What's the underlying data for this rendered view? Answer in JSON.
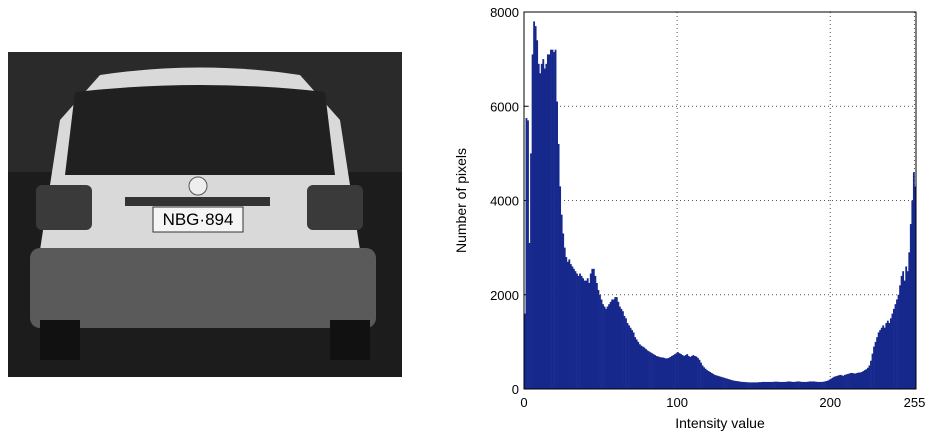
{
  "photo": {
    "plate": "NBG·894"
  },
  "chart_data": {
    "type": "histogram",
    "xlabel": "Intensity value",
    "ylabel": "Number of pixels",
    "color": "#16288c",
    "grid": true,
    "xlim": [
      0,
      256
    ],
    "ylim": [
      0,
      8000
    ],
    "xticks": [
      0,
      100,
      200,
      255
    ],
    "yticks": [
      0,
      2000,
      4000,
      6000,
      8000
    ],
    "bins": [
      0,
      1,
      2,
      3,
      4,
      5,
      6,
      7,
      8,
      9,
      10,
      11,
      12,
      13,
      14,
      15,
      16,
      17,
      18,
      19,
      20,
      21,
      22,
      23,
      24,
      25,
      26,
      27,
      28,
      29,
      30,
      31,
      32,
      33,
      34,
      35,
      36,
      37,
      38,
      39,
      40,
      41,
      42,
      43,
      44,
      45,
      46,
      47,
      48,
      49,
      50,
      51,
      52,
      53,
      54,
      55,
      56,
      57,
      58,
      59,
      60,
      61,
      62,
      63,
      64,
      65,
      66,
      67,
      68,
      69,
      70,
      71,
      72,
      73,
      74,
      75,
      76,
      77,
      78,
      79,
      80,
      81,
      82,
      83,
      84,
      85,
      86,
      87,
      88,
      89,
      90,
      91,
      92,
      93,
      94,
      95,
      96,
      97,
      98,
      99,
      100,
      101,
      102,
      103,
      104,
      105,
      106,
      107,
      108,
      109,
      110,
      111,
      112,
      113,
      114,
      115,
      116,
      117,
      118,
      119,
      120,
      121,
      122,
      123,
      124,
      125,
      126,
      127,
      128,
      129,
      130,
      131,
      132,
      133,
      134,
      135,
      136,
      137,
      138,
      139,
      140,
      141,
      142,
      143,
      144,
      145,
      146,
      147,
      148,
      149,
      150,
      151,
      152,
      153,
      154,
      155,
      156,
      157,
      158,
      159,
      160,
      161,
      162,
      163,
      164,
      165,
      166,
      167,
      168,
      169,
      170,
      171,
      172,
      173,
      174,
      175,
      176,
      177,
      178,
      179,
      180,
      181,
      182,
      183,
      184,
      185,
      186,
      187,
      188,
      189,
      190,
      191,
      192,
      193,
      194,
      195,
      196,
      197,
      198,
      199,
      200,
      201,
      202,
      203,
      204,
      205,
      206,
      207,
      208,
      209,
      210,
      211,
      212,
      213,
      214,
      215,
      216,
      217,
      218,
      219,
      220,
      221,
      222,
      223,
      224,
      225,
      226,
      227,
      228,
      229,
      230,
      231,
      232,
      233,
      234,
      235,
      236,
      237,
      238,
      239,
      240,
      241,
      242,
      243,
      244,
      245,
      246,
      247,
      248,
      249,
      250,
      251,
      252,
      253,
      254,
      255,
      256
    ],
    "values": [
      1600,
      5750,
      5700,
      3100,
      5000,
      7100,
      7800,
      7700,
      7400,
      6900,
      6700,
      6900,
      7000,
      6800,
      6900,
      7100,
      7100,
      7200,
      7200,
      7150,
      7200,
      6100,
      5200,
      4300,
      3700,
      3300,
      3000,
      2800,
      2700,
      2750,
      2650,
      2600,
      2550,
      2500,
      2450,
      2400,
      2450,
      2400,
      2350,
      2300,
      2300,
      2350,
      2250,
      2450,
      2550,
      2550,
      2400,
      2250,
      2100,
      2000,
      1900,
      1800,
      1750,
      1700,
      1750,
      1800,
      1850,
      1900,
      1900,
      1950,
      1950,
      1850,
      1750,
      1700,
      1650,
      1550,
      1500,
      1400,
      1350,
      1300,
      1250,
      1200,
      1100,
      1050,
      1000,
      950,
      920,
      900,
      880,
      850,
      820,
      800,
      780,
      760,
      740,
      720,
      700,
      690,
      680,
      670,
      670,
      660,
      650,
      650,
      660,
      680,
      700,
      720,
      740,
      760,
      780,
      760,
      740,
      720,
      700,
      720,
      740,
      700,
      680,
      700,
      720,
      700,
      690,
      660,
      620,
      560,
      500,
      460,
      430,
      400,
      380,
      360,
      340,
      320,
      300,
      290,
      280,
      270,
      260,
      250,
      240,
      230,
      220,
      210,
      200,
      190,
      180,
      175,
      170,
      165,
      160,
      155,
      150,
      150,
      145,
      145,
      140,
      140,
      140,
      140,
      140,
      140,
      140,
      145,
      145,
      150,
      150,
      150,
      150,
      150,
      150,
      150,
      150,
      155,
      155,
      155,
      150,
      150,
      150,
      150,
      150,
      155,
      160,
      160,
      155,
      150,
      150,
      155,
      160,
      160,
      155,
      150,
      150,
      150,
      150,
      155,
      160,
      160,
      160,
      160,
      155,
      150,
      150,
      150,
      150,
      155,
      160,
      170,
      180,
      200,
      220,
      240,
      260,
      270,
      280,
      290,
      300,
      290,
      280,
      300,
      310,
      320,
      330,
      340,
      340,
      330,
      330,
      340,
      350,
      350,
      360,
      380,
      400,
      420,
      450,
      500,
      600,
      750,
      900,
      1000,
      1100,
      1200,
      1250,
      1300,
      1350,
      1300,
      1400,
      1450,
      1400,
      1500,
      1600,
      1700,
      1800,
      1900,
      2000,
      2200,
      2400,
      2500,
      2300,
      2600,
      2500,
      2900,
      3500,
      4000,
      4600,
      4300
    ]
  }
}
